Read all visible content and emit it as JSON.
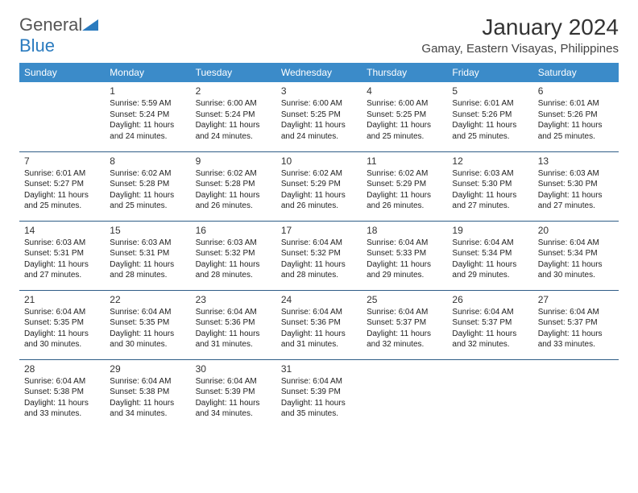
{
  "logo": {
    "word1": "General",
    "word2": "Blue"
  },
  "title": "January 2024",
  "location": "Gamay, Eastern Visayas, Philippines",
  "colors": {
    "header_bg": "#3b8bc9",
    "header_text": "#ffffff",
    "row_border": "#2f5d87",
    "logo_gray": "#555555",
    "logo_blue": "#2a7bbf",
    "text": "#222222"
  },
  "weekdays": [
    "Sunday",
    "Monday",
    "Tuesday",
    "Wednesday",
    "Thursday",
    "Friday",
    "Saturday"
  ],
  "weeks": [
    [
      null,
      {
        "n": "1",
        "sr": "5:59 AM",
        "ss": "5:24 PM",
        "dl": "11 hours and 24 minutes."
      },
      {
        "n": "2",
        "sr": "6:00 AM",
        "ss": "5:24 PM",
        "dl": "11 hours and 24 minutes."
      },
      {
        "n": "3",
        "sr": "6:00 AM",
        "ss": "5:25 PM",
        "dl": "11 hours and 24 minutes."
      },
      {
        "n": "4",
        "sr": "6:00 AM",
        "ss": "5:25 PM",
        "dl": "11 hours and 25 minutes."
      },
      {
        "n": "5",
        "sr": "6:01 AM",
        "ss": "5:26 PM",
        "dl": "11 hours and 25 minutes."
      },
      {
        "n": "6",
        "sr": "6:01 AM",
        "ss": "5:26 PM",
        "dl": "11 hours and 25 minutes."
      }
    ],
    [
      {
        "n": "7",
        "sr": "6:01 AM",
        "ss": "5:27 PM",
        "dl": "11 hours and 25 minutes."
      },
      {
        "n": "8",
        "sr": "6:02 AM",
        "ss": "5:28 PM",
        "dl": "11 hours and 25 minutes."
      },
      {
        "n": "9",
        "sr": "6:02 AM",
        "ss": "5:28 PM",
        "dl": "11 hours and 26 minutes."
      },
      {
        "n": "10",
        "sr": "6:02 AM",
        "ss": "5:29 PM",
        "dl": "11 hours and 26 minutes."
      },
      {
        "n": "11",
        "sr": "6:02 AM",
        "ss": "5:29 PM",
        "dl": "11 hours and 26 minutes."
      },
      {
        "n": "12",
        "sr": "6:03 AM",
        "ss": "5:30 PM",
        "dl": "11 hours and 27 minutes."
      },
      {
        "n": "13",
        "sr": "6:03 AM",
        "ss": "5:30 PM",
        "dl": "11 hours and 27 minutes."
      }
    ],
    [
      {
        "n": "14",
        "sr": "6:03 AM",
        "ss": "5:31 PM",
        "dl": "11 hours and 27 minutes."
      },
      {
        "n": "15",
        "sr": "6:03 AM",
        "ss": "5:31 PM",
        "dl": "11 hours and 28 minutes."
      },
      {
        "n": "16",
        "sr": "6:03 AM",
        "ss": "5:32 PM",
        "dl": "11 hours and 28 minutes."
      },
      {
        "n": "17",
        "sr": "6:04 AM",
        "ss": "5:32 PM",
        "dl": "11 hours and 28 minutes."
      },
      {
        "n": "18",
        "sr": "6:04 AM",
        "ss": "5:33 PM",
        "dl": "11 hours and 29 minutes."
      },
      {
        "n": "19",
        "sr": "6:04 AM",
        "ss": "5:34 PM",
        "dl": "11 hours and 29 minutes."
      },
      {
        "n": "20",
        "sr": "6:04 AM",
        "ss": "5:34 PM",
        "dl": "11 hours and 30 minutes."
      }
    ],
    [
      {
        "n": "21",
        "sr": "6:04 AM",
        "ss": "5:35 PM",
        "dl": "11 hours and 30 minutes."
      },
      {
        "n": "22",
        "sr": "6:04 AM",
        "ss": "5:35 PM",
        "dl": "11 hours and 30 minutes."
      },
      {
        "n": "23",
        "sr": "6:04 AM",
        "ss": "5:36 PM",
        "dl": "11 hours and 31 minutes."
      },
      {
        "n": "24",
        "sr": "6:04 AM",
        "ss": "5:36 PM",
        "dl": "11 hours and 31 minutes."
      },
      {
        "n": "25",
        "sr": "6:04 AM",
        "ss": "5:37 PM",
        "dl": "11 hours and 32 minutes."
      },
      {
        "n": "26",
        "sr": "6:04 AM",
        "ss": "5:37 PM",
        "dl": "11 hours and 32 minutes."
      },
      {
        "n": "27",
        "sr": "6:04 AM",
        "ss": "5:37 PM",
        "dl": "11 hours and 33 minutes."
      }
    ],
    [
      {
        "n": "28",
        "sr": "6:04 AM",
        "ss": "5:38 PM",
        "dl": "11 hours and 33 minutes."
      },
      {
        "n": "29",
        "sr": "6:04 AM",
        "ss": "5:38 PM",
        "dl": "11 hours and 34 minutes."
      },
      {
        "n": "30",
        "sr": "6:04 AM",
        "ss": "5:39 PM",
        "dl": "11 hours and 34 minutes."
      },
      {
        "n": "31",
        "sr": "6:04 AM",
        "ss": "5:39 PM",
        "dl": "11 hours and 35 minutes."
      },
      null,
      null,
      null
    ]
  ],
  "labels": {
    "sunrise": "Sunrise:",
    "sunset": "Sunset:",
    "daylight": "Daylight:"
  }
}
